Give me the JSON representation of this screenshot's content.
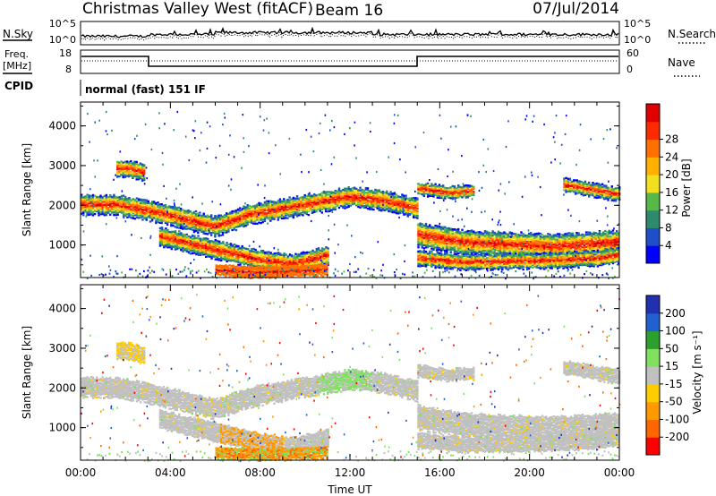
{
  "header": {
    "station": "Christmas Valley West (fitACF)",
    "beam": "Beam 16",
    "date": "07/Jul/2014"
  },
  "sky_panel": {
    "left_label": "N.Sky",
    "right_label": "N.Search",
    "left_ticks": [
      "10^5",
      "10^0"
    ],
    "right_ticks": [
      "10^5",
      "10^0"
    ]
  },
  "freq_panel": {
    "left_label_1": "Freq.",
    "left_label_2": "[MHz]",
    "right_label": "Nave",
    "left_ticks": [
      "18",
      "8"
    ],
    "right_ticks": [
      "60",
      "0"
    ]
  },
  "cpid": {
    "label": "CPID",
    "mode": "normal (fast) 151 IF"
  },
  "colors": {
    "power_scale": [
      "#0000ff",
      "#1f4fc8",
      "#2e8a6e",
      "#55b848",
      "#f2e020",
      "#ffb000",
      "#ff7000",
      "#ff2a00",
      "#e00000"
    ],
    "velocity_scale": [
      "#ff0000",
      "#ff6600",
      "#ff9900",
      "#ffcc00",
      "#c0c0c0",
      "#80e060",
      "#2ca02c",
      "#2060d0",
      "#2030b0"
    ]
  },
  "chart_data": [
    {
      "type": "heatmap",
      "name": "power",
      "ylabel": "Slant Range [km]",
      "xlim": [
        0,
        24
      ],
      "ylim": [
        180,
        4600
      ],
      "yticks": [
        "1000",
        "2000",
        "3000",
        "4000"
      ],
      "colorbar": {
        "label": "Power [dB]",
        "ticks": [
          "4",
          "8",
          "12",
          "16",
          "20",
          "24",
          "28"
        ],
        "range": [
          0,
          32
        ]
      }
    },
    {
      "type": "heatmap",
      "name": "velocity",
      "ylabel": "Slant Range [km]",
      "xlabel": "Time UT",
      "xlim": [
        0,
        24
      ],
      "ylim": [
        180,
        4600
      ],
      "yticks": [
        "1000",
        "2000",
        "3000",
        "4000"
      ],
      "xticks": [
        "00:00",
        "04:00",
        "08:00",
        "12:00",
        "16:00",
        "20:00",
        "00:00"
      ],
      "colorbar": {
        "label": "Velocity [m s⁻¹]",
        "ticks": [
          "-200",
          "-100",
          "-50",
          "-15",
          "15",
          "50",
          "100",
          "200"
        ]
      }
    }
  ]
}
